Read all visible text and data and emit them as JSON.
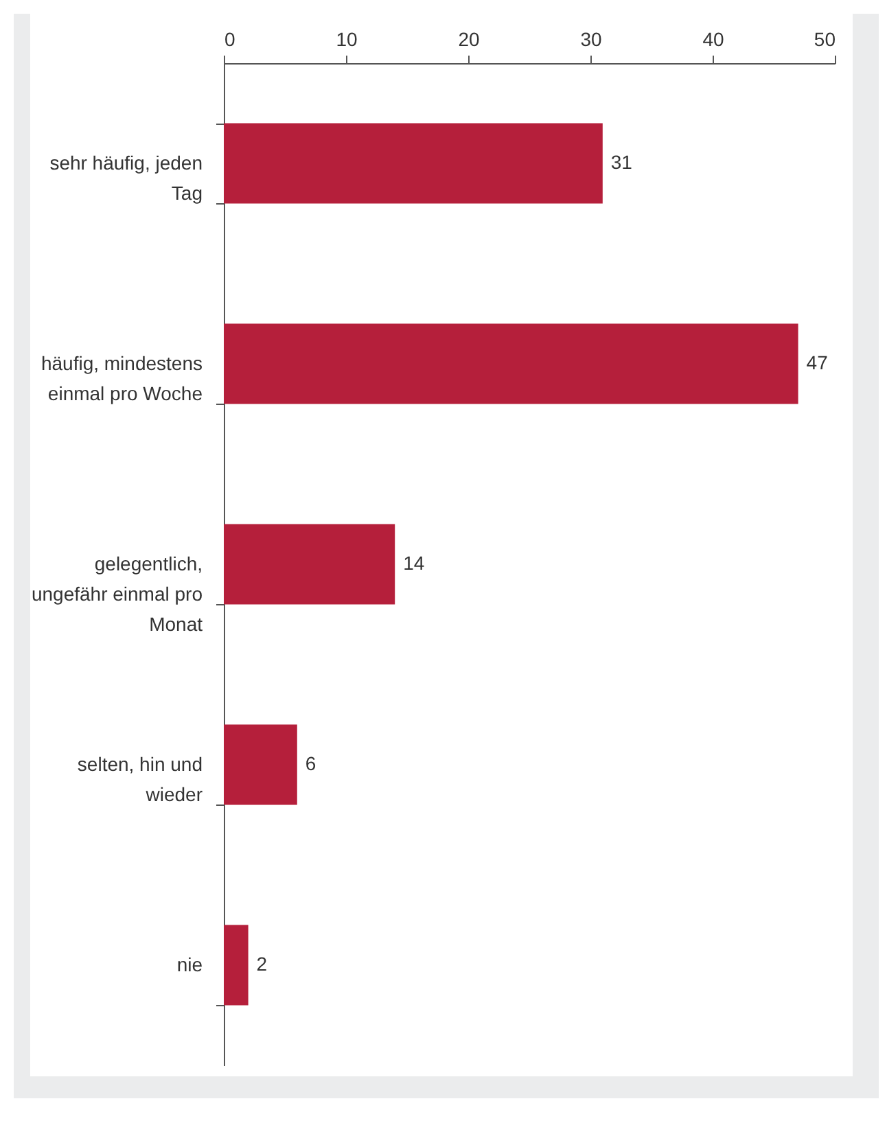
{
  "chart_data": {
    "type": "bar",
    "orientation": "horizontal",
    "categories": [
      "sehr häufig, jeden Tag",
      "häufig, mindestens einmal pro Woche",
      "gelegentlich, ungefähr einmal pro Monat",
      "selten, hin und wieder",
      "nie"
    ],
    "values": [
      31,
      47,
      14,
      6,
      2
    ],
    "color": "#b51f3b",
    "xlim": [
      0,
      50
    ],
    "xticks": [
      0,
      10,
      20,
      30,
      40,
      50
    ],
    "data_labels": true,
    "grid": false
  }
}
